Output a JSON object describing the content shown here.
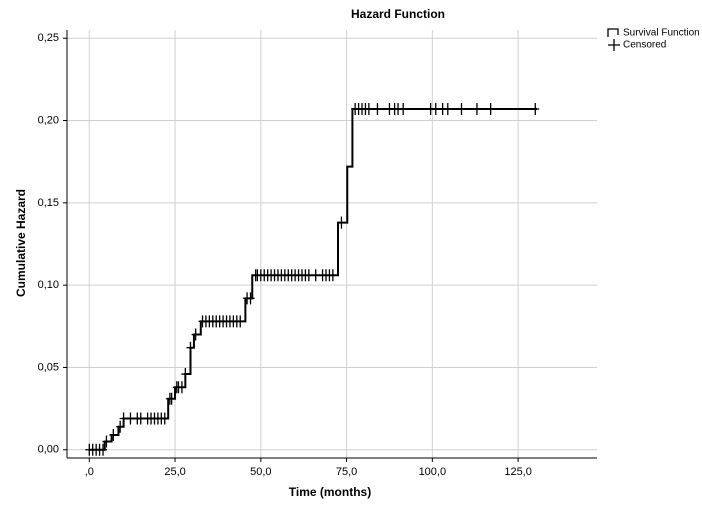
{
  "chart_data": {
    "type": "step",
    "title": "Hazard Function",
    "x_label": "Time (months)",
    "y_label": "Cumulative  Hazard",
    "xlim": [
      -6.5,
      148
    ],
    "ylim": [
      -0.005,
      0.255
    ],
    "xticks": [
      {
        "value": 0,
        "label": ",0"
      },
      {
        "value": 25,
        "label": "25,0"
      },
      {
        "value": 50,
        "label": "50,0"
      },
      {
        "value": 75,
        "label": "75,0"
      },
      {
        "value": 100,
        "label": "100,0"
      },
      {
        "value": 125,
        "label": "125,0"
      }
    ],
    "yticks": [
      {
        "value": 0,
        "label": "0,00"
      },
      {
        "value": 0.05,
        "label": "0,05"
      },
      {
        "value": 0.1,
        "label": "0,10"
      },
      {
        "value": 0.15,
        "label": "0,15"
      },
      {
        "value": 0.2,
        "label": "0,20"
      },
      {
        "value": 0.25,
        "label": "0,25"
      }
    ],
    "grid": true,
    "legend": "top-right",
    "series": [
      {
        "name": "Survival Function",
        "color": "#000000",
        "style": "step",
        "x": [
          0,
          4.5,
          6.5,
          8.5,
          10,
          23,
          25,
          28,
          29.5,
          30.5,
          32.5,
          45.5,
          47.5,
          72.5,
          75.2,
          76.7,
          130.5
        ],
        "values": [
          0,
          0.005,
          0.009,
          0.014,
          0.019,
          0.031,
          0.038,
          0.046,
          0.062,
          0.07,
          0.078,
          0.092,
          0.106,
          0.138,
          0.172,
          0.207,
          0.207
        ]
      },
      {
        "name": "Censored",
        "color": "#000000",
        "style": "plus",
        "x": [
          0,
          1,
          2,
          3,
          4,
          5,
          7,
          9,
          10,
          12,
          14,
          15,
          17,
          18,
          19,
          20,
          21,
          22,
          23.5,
          24,
          25.5,
          26,
          27,
          28,
          29.5,
          31,
          33,
          34,
          35,
          36,
          37,
          38,
          39,
          40,
          41,
          42,
          43,
          44,
          46,
          47,
          48.5,
          49,
          50,
          51,
          52,
          53,
          54,
          55,
          56,
          57,
          58,
          59,
          60,
          61,
          62,
          63,
          64,
          66,
          68,
          69,
          70,
          71,
          73.5,
          77.5,
          78.5,
          79.5,
          80.5,
          81.5,
          84,
          87.5,
          89,
          90,
          91.5,
          99.5,
          101,
          103,
          104.5,
          108.5,
          113,
          117,
          130
        ],
        "values": [
          0,
          0,
          0,
          0,
          0,
          0.005,
          0.009,
          0.014,
          0.019,
          0.019,
          0.019,
          0.019,
          0.019,
          0.019,
          0.019,
          0.019,
          0.019,
          0.019,
          0.031,
          0.031,
          0.038,
          0.038,
          0.038,
          0.046,
          0.062,
          0.07,
          0.078,
          0.078,
          0.078,
          0.078,
          0.078,
          0.078,
          0.078,
          0.078,
          0.078,
          0.078,
          0.078,
          0.078,
          0.092,
          0.092,
          0.106,
          0.106,
          0.106,
          0.106,
          0.106,
          0.106,
          0.106,
          0.106,
          0.106,
          0.106,
          0.106,
          0.106,
          0.106,
          0.106,
          0.106,
          0.106,
          0.106,
          0.106,
          0.106,
          0.106,
          0.106,
          0.106,
          0.138,
          0.207,
          0.207,
          0.207,
          0.207,
          0.207,
          0.207,
          0.207,
          0.207,
          0.207,
          0.207,
          0.207,
          0.207,
          0.207,
          0.207,
          0.207,
          0.207,
          0.207,
          0.207
        ]
      }
    ]
  }
}
